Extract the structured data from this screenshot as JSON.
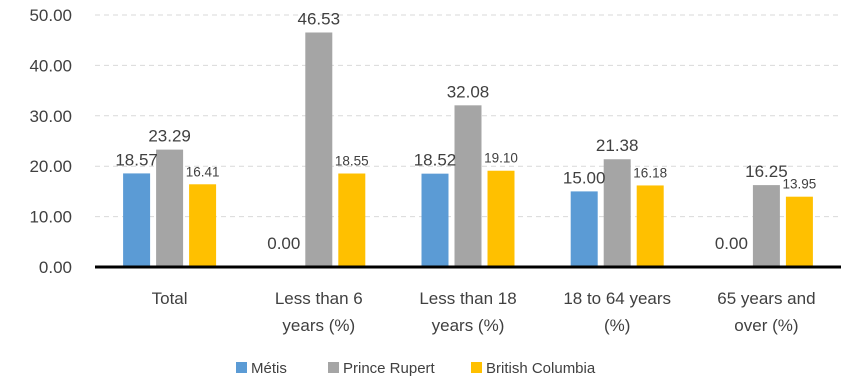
{
  "chart_data": {
    "type": "bar",
    "title": "",
    "xlabel": "",
    "ylabel": "",
    "ylim": [
      0,
      50
    ],
    "yticks": [
      "0.00",
      "10.00",
      "20.00",
      "30.00",
      "40.00",
      "50.00"
    ],
    "grid": true,
    "legend_position": "bottom",
    "categories": [
      [
        "Total"
      ],
      [
        "Less than 6",
        "years (%)"
      ],
      [
        "Less than 18",
        "years (%)"
      ],
      [
        "18 to 64 years",
        "(%)"
      ],
      [
        "65 years and",
        "over (%)"
      ]
    ],
    "series": [
      {
        "name": "Métis",
        "color": "#5b9bd5",
        "values": [
          18.57,
          0.0,
          18.52,
          15.0,
          0.0
        ],
        "labels": [
          "18.57",
          "0.00",
          "18.52",
          "15.00",
          "0.00"
        ]
      },
      {
        "name": "Prince Rupert",
        "color": "#a5a5a5",
        "values": [
          23.29,
          46.53,
          32.08,
          21.38,
          16.25
        ],
        "labels": [
          "23.29",
          "46.53",
          "32.08",
          "21.38",
          "16.25"
        ]
      },
      {
        "name": "British Columbia",
        "color": "#ffc000",
        "values": [
          16.41,
          18.55,
          19.1,
          16.18,
          13.95
        ],
        "labels": [
          "16.41",
          "18.55",
          "19.10",
          "16.18",
          "13.95"
        ]
      }
    ]
  }
}
